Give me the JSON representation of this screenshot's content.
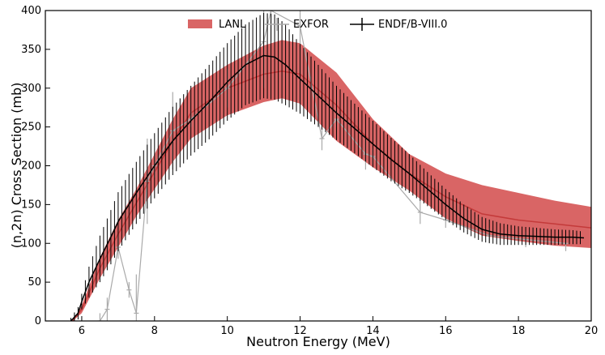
{
  "chart_data": {
    "type": "line",
    "xlabel": "Neutron Energy (MeV)",
    "ylabel": "(n,2n) Cross Section (mb)",
    "xlim": [
      5,
      20
    ],
    "ylim": [
      0,
      400
    ],
    "x_ticks": [
      6,
      8,
      10,
      12,
      14,
      16,
      18,
      20
    ],
    "y_ticks": [
      0,
      50,
      100,
      150,
      200,
      250,
      300,
      350,
      400
    ],
    "legend_position": "top-center",
    "colors": {
      "lanl": "#d24a4a",
      "exfor": "#aaaaaa",
      "endf": "#000000"
    },
    "series": [
      {
        "name": "LANL",
        "kind": "band",
        "x": [
          5.75,
          6.0,
          6.5,
          7.0,
          7.5,
          8.0,
          8.5,
          9.0,
          10.0,
          11.0,
          11.5,
          12.0,
          13.0,
          14.0,
          15.0,
          16.0,
          17.0,
          18.0,
          19.0,
          20.0
        ],
        "lower": [
          0,
          10,
          55,
          95,
          135,
          170,
          205,
          235,
          265,
          282,
          287,
          280,
          232,
          198,
          168,
          132,
          110,
          103,
          97,
          94
        ],
        "upper": [
          0,
          20,
          82,
          130,
          170,
          215,
          260,
          300,
          330,
          355,
          362,
          358,
          320,
          260,
          215,
          190,
          175,
          165,
          155,
          147
        ],
        "center": [
          0,
          15,
          68,
          112,
          152,
          192,
          232,
          268,
          300,
          318,
          322,
          318,
          278,
          228,
          190,
          160,
          138,
          130,
          125,
          120
        ]
      },
      {
        "name": "EXFOR",
        "kind": "scatter-errorbar",
        "x": [
          6.5,
          6.7,
          7.0,
          7.3,
          7.5,
          7.8,
          8.0,
          8.5,
          9.0,
          10.0,
          11.0,
          11.2,
          12.0,
          12.6,
          13.0,
          13.8,
          14.0,
          15.3,
          16.0,
          17.2,
          18.2,
          19.3
        ],
        "y": [
          0,
          15,
          95,
          40,
          10,
          180,
          200,
          245,
          260,
          300,
          360,
          400,
          380,
          235,
          260,
          215,
          212,
          140,
          130,
          110,
          105,
          100
        ],
        "yerr": [
          10,
          15,
          15,
          10,
          50,
          55,
          15,
          50,
          10,
          25,
          60,
          40,
          100,
          15,
          10,
          20,
          10,
          15,
          10,
          10,
          10,
          10
        ]
      },
      {
        "name": "ENDF/B-VIII.0",
        "kind": "line-errorbar",
        "x": [
          5.7,
          5.9,
          6.0,
          6.2,
          6.5,
          6.8,
          7.0,
          7.5,
          8.0,
          8.5,
          9.0,
          9.5,
          10.0,
          10.5,
          11.0,
          11.3,
          11.6,
          12.0,
          12.5,
          13.0,
          13.5,
          14.0,
          14.5,
          15.0,
          15.5,
          16.0,
          16.5,
          17.0,
          17.5,
          18.0,
          18.5,
          19.0,
          19.5,
          19.8
        ],
        "y": [
          0,
          10,
          25,
          50,
          80,
          108,
          128,
          165,
          200,
          232,
          258,
          282,
          308,
          330,
          342,
          340,
          330,
          312,
          290,
          268,
          248,
          228,
          208,
          190,
          170,
          150,
          132,
          118,
          112,
          110,
          109,
          108,
          108,
          107
        ],
        "yerr": [
          4,
          8,
          10,
          20,
          30,
          35,
          38,
          40,
          42,
          44,
          45,
          48,
          50,
          52,
          55,
          55,
          52,
          45,
          40,
          35,
          32,
          30,
          28,
          25,
          22,
          20,
          18,
          16,
          14,
          12,
          11,
          10,
          9,
          8
        ]
      }
    ]
  }
}
